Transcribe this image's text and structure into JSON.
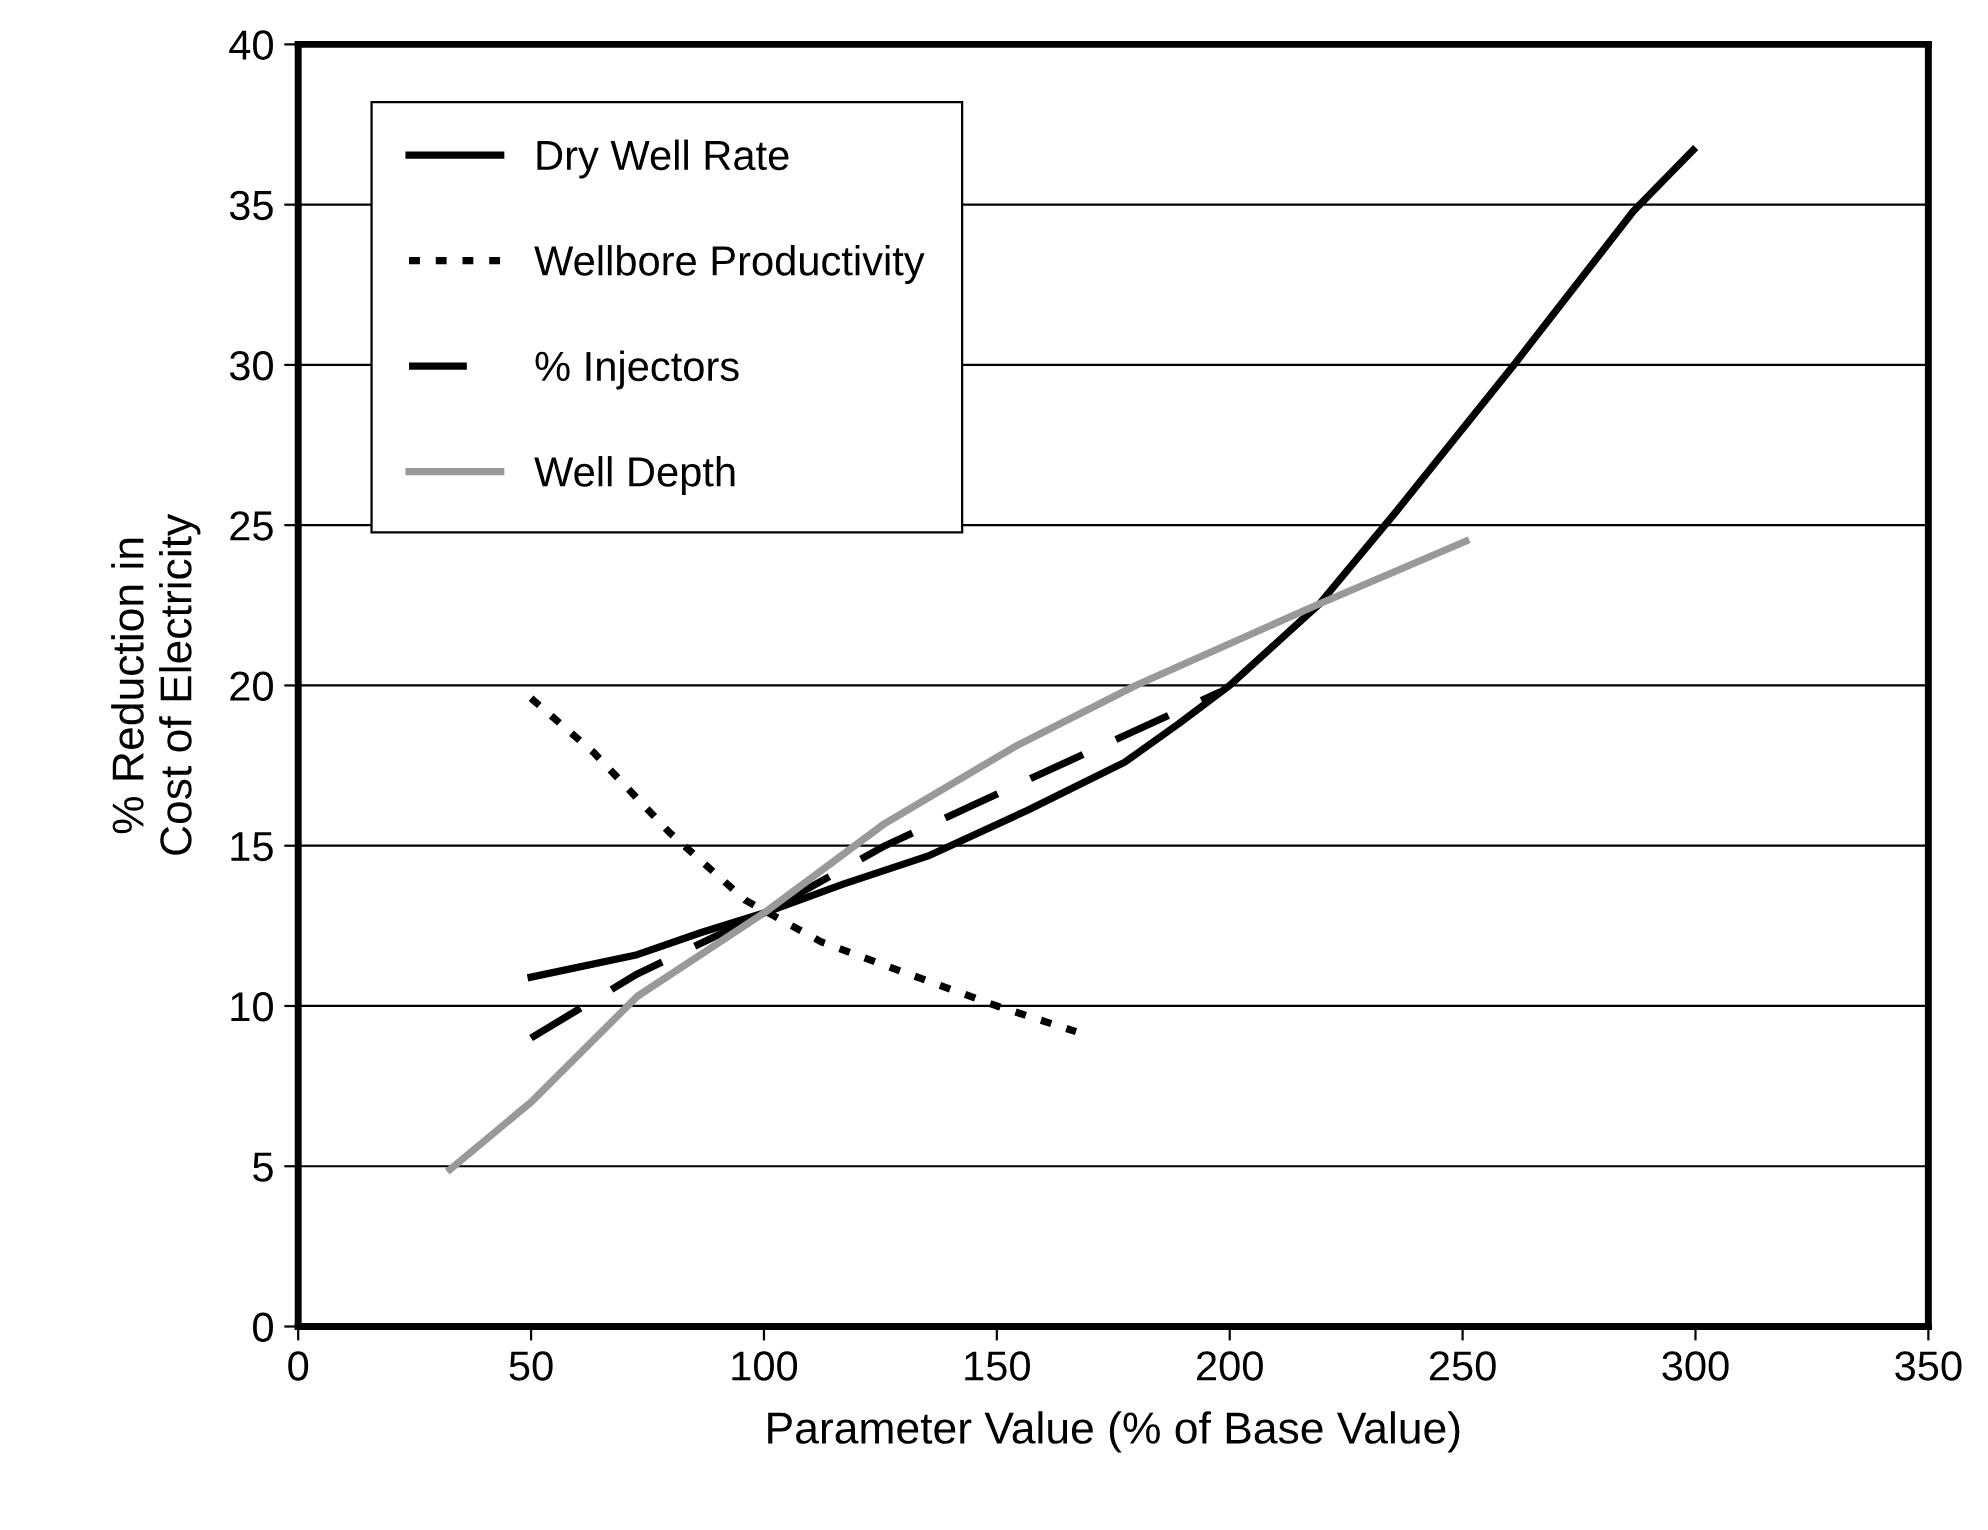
{
  "chart_data": {
    "type": "line",
    "xlabel": "Parameter Value (% of Base Value)",
    "ylabel": "% Reduction in\nCost of Electricity",
    "xlim": [
      0,
      350
    ],
    "xticks": [
      0,
      50,
      100,
      150,
      200,
      250,
      300,
      350
    ],
    "ylim": [
      0,
      40
    ],
    "yticks": [
      0,
      5,
      10,
      15,
      20,
      25,
      30,
      35,
      40
    ],
    "grid": "y",
    "legend": "top left",
    "marker": "none",
    "series": [
      {
        "name": "Dry Well Rate",
        "color": "#000000",
        "line_style": "solid",
        "x": [
          50,
          72.8,
          86.7,
          100,
          117,
          135.6,
          156.5,
          177.4,
          189,
          200,
          219.3,
          235.6,
          261,
          286.7,
          299.5
        ],
        "values": [
          10.9,
          11.6,
          12.3,
          12.9,
          13.8,
          14.7,
          16.1,
          17.6,
          18.8,
          20.0,
          22.55,
          25.4,
          30.0,
          34.8,
          36.7
        ]
      },
      {
        "name": "Wellbore Productivity",
        "color": "#000000",
        "line_style": "dotted",
        "x": [
          50,
          63.5,
          79.8,
          96,
          112.3,
          131,
          150,
          167
        ],
        "values": [
          19.6,
          17.9,
          15.4,
          13.3,
          12.0,
          11.0,
          10.0,
          9.2
        ]
      },
      {
        "name": "% Injectors",
        "color": "#000000",
        "line_style": "dashed",
        "x": [
          50,
          72.8,
          100,
          126,
          158.8,
          198
        ],
        "values": [
          9.0,
          11.0,
          12.9,
          15.0,
          17.2,
          19.8
        ]
      },
      {
        "name": "Well Depth",
        "color": "#999999",
        "line_style": "solid",
        "x": [
          32.6,
          50,
          72.8,
          100,
          126,
          154,
          179.8,
          219.3,
          250.7
        ],
        "values": [
          4.9,
          7.0,
          10.3,
          12.9,
          15.7,
          18.1,
          20.0,
          22.55,
          24.5
        ]
      }
    ]
  }
}
